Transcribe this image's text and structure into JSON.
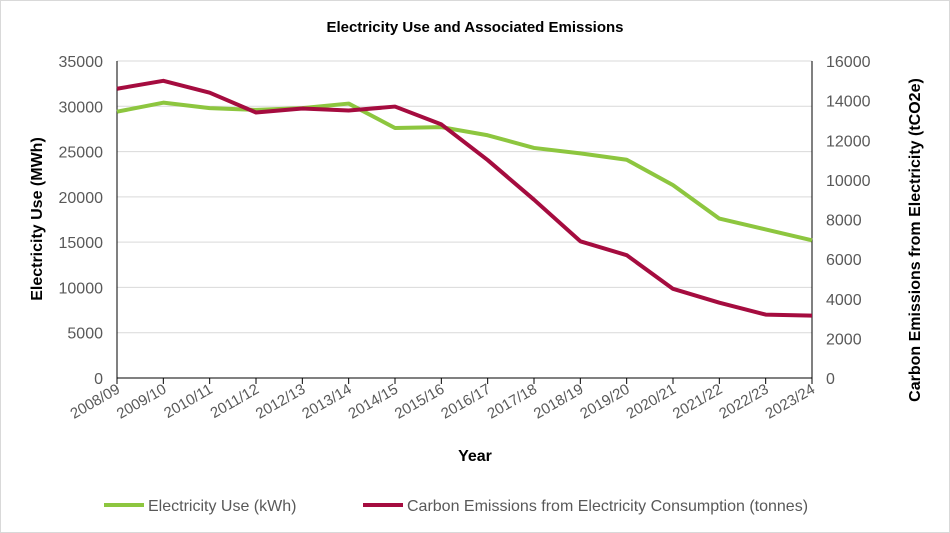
{
  "chart_data": {
    "type": "line",
    "title": "Electricity Use and Associated Emissions",
    "xlabel": "Year",
    "ylabel": "Electricity Use (MWh)",
    "y2label": "Carbon Emissions from Electricity (tCO2e)",
    "categories": [
      "2008/09",
      "2009/10",
      "2010/11",
      "2011/12",
      "2012/13",
      "2013/14",
      "2014/15",
      "2015/16",
      "2016/17",
      "2017/18",
      "2018/19",
      "2019/20",
      "2020/21",
      "2021/22",
      "2022/23",
      "2023/24"
    ],
    "ylim": [
      0,
      35000
    ],
    "yticks": [
      0,
      5000,
      10000,
      15000,
      20000,
      25000,
      30000,
      35000
    ],
    "y2lim": [
      0,
      16000
    ],
    "y2ticks": [
      0,
      2000,
      4000,
      6000,
      8000,
      10000,
      12000,
      14000,
      16000
    ],
    "grid": true,
    "legend_position": "bottom",
    "series": [
      {
        "name": "Electricity Use (kWh)",
        "axis": "left",
        "color": "#8dc63f",
        "values": [
          29400,
          30400,
          29800,
          29600,
          29800,
          30300,
          27600,
          27700,
          26800,
          25400,
          24800,
          24100,
          21300,
          17600,
          16400,
          15200
        ]
      },
      {
        "name": "Carbon Emissions from Electricity Consumption (tonnes)",
        "axis": "right",
        "color": "#a50c3f",
        "values": [
          14600,
          15000,
          14400,
          13400,
          13600,
          13500,
          13700,
          12800,
          11000,
          9000,
          6900,
          6200,
          4500,
          3800,
          3200,
          3150
        ]
      }
    ]
  }
}
